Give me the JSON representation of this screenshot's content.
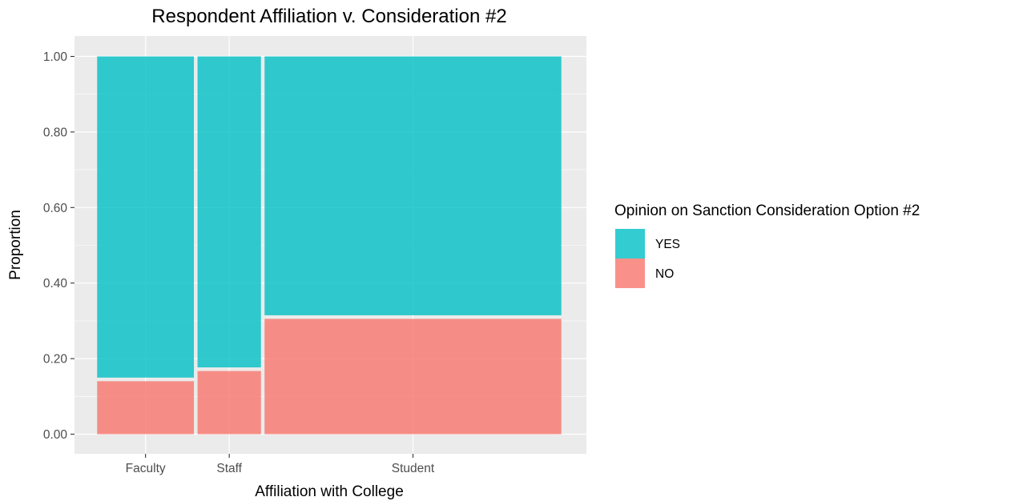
{
  "chart_data": {
    "type": "bar",
    "subtype": "mosaic",
    "title": "Respondent Affiliation v. Consideration #2",
    "xlabel": "Affiliation with College",
    "ylabel": "Proportion",
    "ylim": [
      0,
      1
    ],
    "yticks": [
      "0.00",
      "0.20",
      "0.40",
      "0.60",
      "0.80",
      "1.00"
    ],
    "grid": true,
    "legend": {
      "title": "Opinion on Sanction Consideration Option #2",
      "position": "right"
    },
    "categories": [
      "Faculty",
      "Staff",
      "Student"
    ],
    "category_shares": [
      0.2146,
      0.1433,
      0.6421
    ],
    "series": [
      {
        "name": "YES",
        "color": "#00bfc4",
        "values": [
          0.855,
          0.828,
          0.69
        ]
      },
      {
        "name": "NO",
        "color": "#f8766d",
        "values": [
          0.145,
          0.172,
          0.31
        ]
      }
    ]
  }
}
